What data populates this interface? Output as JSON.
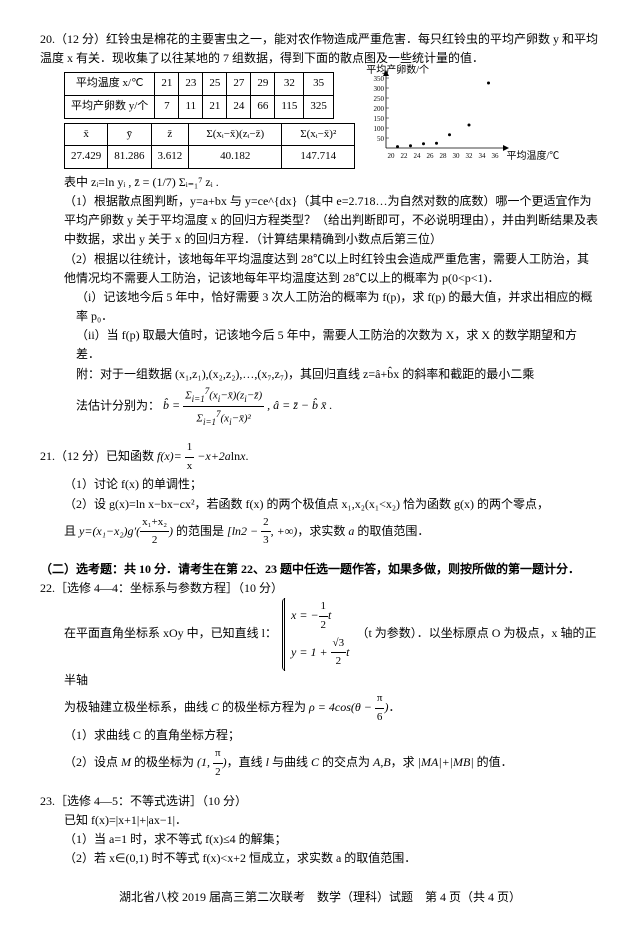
{
  "q20": {
    "head": "20.（12 分）红铃虫是棉花的主要害虫之一，能对农作物造成严重危害．每只红铃虫的平均产卵数 y 和平均温度 x 有关．现收集了以往某地的 7 组数据，得到下面的散点图及一些统计量的值．",
    "table1": {
      "r1c0": "平均温度 x/℃",
      "r1": [
        "21",
        "23",
        "25",
        "27",
        "29",
        "32",
        "35"
      ],
      "r2c0": "平均产卵数 y/个",
      "r2": [
        "7",
        "11",
        "21",
        "24",
        "66",
        "115",
        "325"
      ]
    },
    "table2": {
      "h": [
        "x̄",
        "ȳ",
        "z̄",
        "Σ(xᵢ−x̄)(zᵢ−z̄)",
        "Σ(xᵢ−x̄)²"
      ],
      "v": [
        "27.429",
        "81.286",
        "3.612",
        "40.182",
        "147.714"
      ]
    },
    "chart": {
      "ylabel": "平均产卵数/个",
      "xlabel": "平均温度/℃",
      "yticks": [
        "350",
        "300",
        "250",
        "200",
        "150",
        "100",
        "50"
      ],
      "xticks": [
        "20",
        "22",
        "24",
        "26",
        "28",
        "30",
        "32",
        "34",
        "36"
      ],
      "points": [
        [
          21,
          7
        ],
        [
          23,
          11
        ],
        [
          25,
          21
        ],
        [
          27,
          24
        ],
        [
          29,
          66
        ],
        [
          32,
          115
        ],
        [
          35,
          325
        ]
      ]
    },
    "note": "表中 zᵢ=ln yᵢ , z̄ = (1/7) Σᵢ₌₁⁷ zᵢ .",
    "p1": "（1）根据散点图判断，y=a+bx 与 y=ce^{dx}（其中 e=2.718…为自然对数的底数）哪一个更适宜作为平均产卵数 y 关于平均温度 x 的回归方程类型？（给出判断即可，不必说明理由），并由判断结果及表中数据，求出 y 关于 x 的回归方程．（计算结果精确到小数点后第三位）",
    "p2": "（2）根据以往统计，该地每年平均温度达到 28℃以上时红铃虫会造成严重危害，需要人工防治，其他情况均不需要人工防治，记该地每年平均温度达到 28℃以上的概率为 p(0<p<1)．",
    "p2i": "（i）记该地今后 5 年中，恰好需要 3 次人工防治的概率为 f(p)，求 f(p) 的最大值，并求出相应的概率 p₀．",
    "p2ii": "（ii）当 f(p) 取最大值时，记该地今后 5 年中，需要人工防治的次数为 X，求 X 的数学期望和方差．",
    "app": "附：对于一组数据 (x₁,z₁),(x₂,z₂),…,(x₇,z₇)，其回归直线 z=â+b̂x 的斜率和截距的最小二乘",
    "formula_lead": "法估计分别为：",
    "formula_main": "b̂ = Σ(xᵢ−x̄)(zᵢ−z̄) / Σ(xᵢ−x̄)² ,  â = z̄ − b̂ x̄ ."
  },
  "q21": {
    "head": "21.（12 分）已知函数 f(x) = 1/x − x + 2a ln x.",
    "p1": "（1）讨论 f(x) 的单调性；",
    "p2": "（2）设 g(x)=ln x−bx−cx²，若函数 f(x) 的两个极值点 x₁,x₂(x₁<x₂) 恰为函数 g(x) 的两个零点，",
    "p2b": "且 y=(x₁−x₂)g′((x₁+x₂)/2) 的范围是 [ln2 − 2/3 , +∞)，求实数 a 的取值范围．"
  },
  "section2": "（二）选考题：共 10 分．请考生在第 22、23 题中任选一题作答，如果多做，则按所做的第一题计分．",
  "q22": {
    "head": "22.［选修 4—4：坐标系与参数方程］（10 分）",
    "body1": "在平面直角坐标系 xOy 中，已知直线 l：",
    "sys_x": "x = − (1/2) t",
    "sys_y": "y = 1 + (√3/2) t",
    "body1b": "（t 为参数）．以坐标原点 O 为极点，x 轴的正半轴",
    "body2": "为极轴建立极坐标系，曲线 C 的极坐标方程为 ρ = 4cos(θ − π/6)．",
    "p1": "（1）求曲线 C 的直角坐标方程；",
    "p2": "（2）设点 M 的极坐标为 (1, π/2)，直线 l 与曲线 C 的交点为 A,B，求 |MA|+|MB| 的值．"
  },
  "q23": {
    "head": "23.［选修 4—5：不等式选讲］（10 分）",
    "body": "已知 f(x)=|x+1|+|ax−1|．",
    "p1": "（1）当 a=1 时，求不等式 f(x)≤4 的解集；",
    "p2": "（2）若 x∈(0,1) 时不等式 f(x)<x+2 恒成立，求实数 a 的取值范围．"
  },
  "footer": "湖北省八校 2019 届高三第二次联考　数学（理科）试题　第 4 页（共 4 页）"
}
